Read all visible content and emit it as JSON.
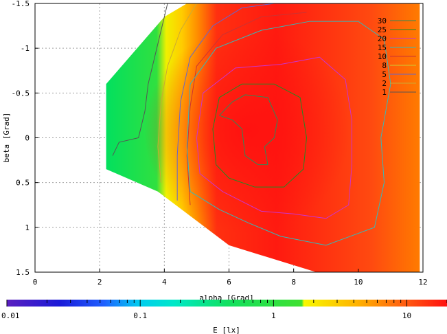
{
  "chart_data": {
    "type": "heatmap",
    "title": "",
    "xlabel": "alpha [Grad]",
    "ylabel": "beta [Grad]",
    "xlim": [
      0,
      12
    ],
    "ylim": [
      -1.5,
      1.5
    ],
    "y_inverted": true,
    "x_ticks": [
      0,
      2,
      4,
      6,
      8,
      10,
      12
    ],
    "x_tick_labels": [
      "0",
      "2",
      "4",
      "6",
      "8",
      "10",
      "12"
    ],
    "y_ticks": [
      -1.5,
      -1,
      -0.5,
      0,
      0.5,
      1,
      1.5
    ],
    "y_tick_labels": [
      "-1.5",
      "-1",
      "-0.5",
      "0",
      "0.5",
      "1",
      "1.5"
    ],
    "grid": true,
    "legend_placement": "top-right",
    "contour_levels": [
      {
        "label": "30",
        "color": "#2e8b57"
      },
      {
        "label": "25",
        "color": "#228b22"
      },
      {
        "label": "20",
        "color": "#cc33cc"
      },
      {
        "label": "15",
        "color": "#33bbbb"
      },
      {
        "label": "10",
        "color": "#cc3333"
      },
      {
        "label": "8",
        "color": "#cccc33"
      },
      {
        "label": "5",
        "color": "#6666cc"
      },
      {
        "label": "2",
        "color": "#ccaa33"
      },
      {
        "label": "1",
        "color": "#555555"
      }
    ],
    "colorbar": {
      "label": "E [lx]",
      "scale": "log",
      "range": [
        0.01,
        20
      ],
      "tick_labels": [
        "0.01",
        "0.1",
        "1",
        "10"
      ],
      "tick_values": [
        0.01,
        0.1,
        1,
        10
      ]
    },
    "contours": [
      {
        "level": "1",
        "points": [
          [
            2.4,
            0.2
          ],
          [
            2.6,
            0.05
          ],
          [
            3.2,
            0.0
          ],
          [
            3.4,
            -0.3
          ],
          [
            3.5,
            -0.6
          ],
          [
            3.7,
            -0.9
          ],
          [
            3.9,
            -1.2
          ],
          [
            4.1,
            -1.5
          ]
        ]
      },
      {
        "level": "2",
        "points": [
          [
            3.9,
            0.5
          ],
          [
            3.8,
            0.1
          ],
          [
            3.9,
            -0.4
          ],
          [
            4.1,
            -0.8
          ],
          [
            4.5,
            -1.2
          ],
          [
            5.0,
            -1.5
          ]
        ]
      },
      {
        "level": "5",
        "points": [
          [
            4.4,
            0.7
          ],
          [
            4.4,
            0.2
          ],
          [
            4.5,
            -0.4
          ],
          [
            4.8,
            -0.9
          ],
          [
            5.5,
            -1.25
          ],
          [
            6.4,
            -1.45
          ],
          [
            7.4,
            -1.5
          ]
        ]
      },
      {
        "level": "10",
        "points": [
          [
            4.8,
            0.75
          ],
          [
            4.7,
            0.2
          ],
          [
            4.8,
            -0.35
          ],
          [
            5.0,
            -0.8
          ],
          [
            5.8,
            -1.15
          ],
          [
            7.0,
            -1.35
          ],
          [
            8.4,
            -1.4
          ]
        ]
      },
      {
        "level": "15",
        "points": [
          [
            5.7,
            0.8
          ],
          [
            4.8,
            0.6
          ],
          [
            4.7,
            0.1
          ],
          [
            4.8,
            -0.6
          ],
          [
            5.6,
            -1.0
          ],
          [
            7.0,
            -1.2
          ],
          [
            8.5,
            -1.3
          ],
          [
            10.0,
            -1.3
          ],
          [
            10.8,
            -1.1
          ],
          [
            11.0,
            -0.6
          ],
          [
            10.7,
            0.0
          ],
          [
            10.8,
            0.5
          ],
          [
            10.5,
            1.0
          ],
          [
            9.0,
            1.2
          ],
          [
            7.6,
            1.1
          ],
          [
            6.6,
            0.95
          ],
          [
            5.7,
            0.8
          ]
        ]
      },
      {
        "level": "20",
        "points": [
          [
            5.8,
            0.6
          ],
          [
            5.1,
            0.4
          ],
          [
            5.0,
            0.0
          ],
          [
            5.2,
            -0.5
          ],
          [
            6.2,
            -0.78
          ],
          [
            7.6,
            -0.82
          ],
          [
            8.8,
            -0.9
          ],
          [
            9.6,
            -0.65
          ],
          [
            9.8,
            -0.2
          ],
          [
            9.8,
            0.3
          ],
          [
            9.7,
            0.75
          ],
          [
            9.0,
            0.9
          ],
          [
            8.0,
            0.85
          ],
          [
            7.0,
            0.82
          ],
          [
            5.8,
            0.6
          ]
        ]
      },
      {
        "level": "25",
        "points": [
          [
            5.6,
            0.3
          ],
          [
            5.5,
            -0.1
          ],
          [
            5.7,
            -0.45
          ],
          [
            6.4,
            -0.6
          ],
          [
            7.4,
            -0.6
          ],
          [
            8.2,
            -0.45
          ],
          [
            8.4,
            0.0
          ],
          [
            8.3,
            0.35
          ],
          [
            7.7,
            0.55
          ],
          [
            6.8,
            0.55
          ],
          [
            6.0,
            0.45
          ],
          [
            5.6,
            0.3
          ]
        ]
      },
      {
        "level": "30",
        "points": [
          [
            5.7,
            -0.25
          ],
          [
            6.1,
            -0.4
          ],
          [
            6.5,
            -0.48
          ],
          [
            7.2,
            -0.45
          ],
          [
            7.5,
            -0.2
          ],
          [
            7.4,
            0.0
          ],
          [
            7.1,
            0.1
          ],
          [
            7.2,
            0.3
          ],
          [
            6.9,
            0.3
          ],
          [
            6.5,
            0.2
          ],
          [
            6.4,
            -0.1
          ],
          [
            6.1,
            -0.2
          ],
          [
            5.7,
            -0.25
          ]
        ]
      }
    ]
  }
}
